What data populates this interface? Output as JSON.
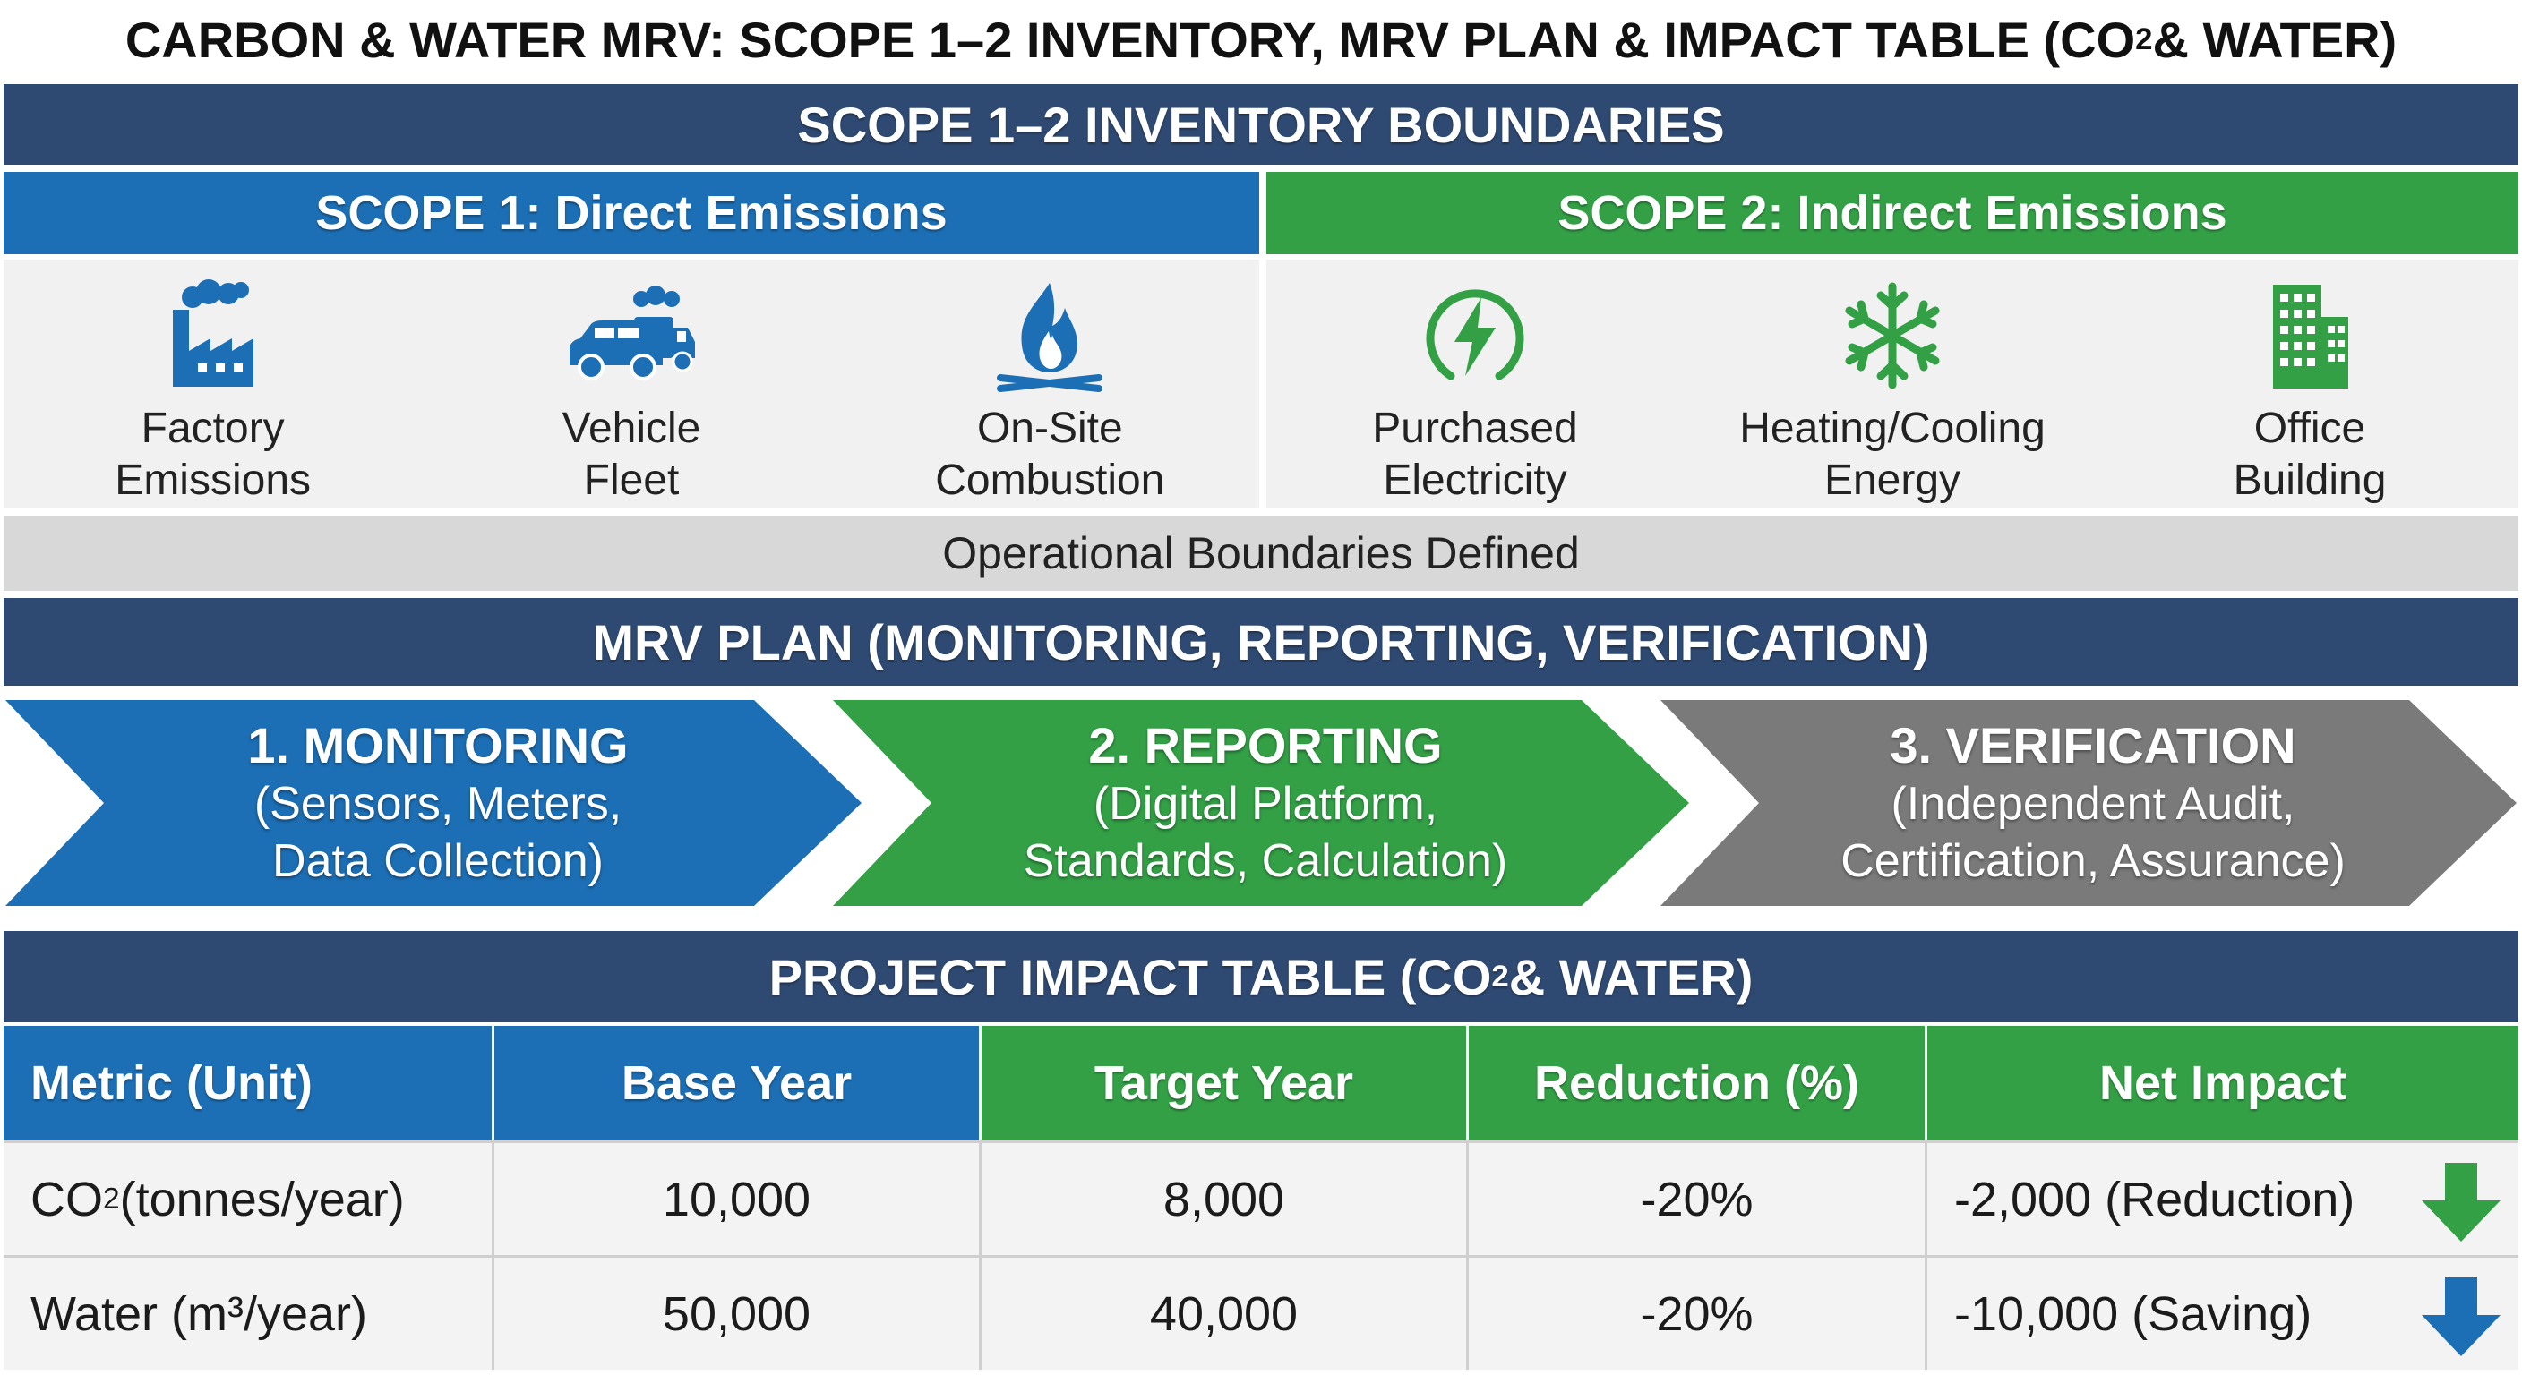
{
  "title": {
    "before": "CARBON & WATER MRV: SCOPE 1–2 INVENTORY, MRV PLAN & IMPACT TABLE (CO",
    "sub": "2",
    "after": " & WATER)"
  },
  "inventory": {
    "heading": "SCOPE 1–2 INVENTORY BOUNDARIES",
    "scope1": {
      "heading": "SCOPE 1: Direct Emissions",
      "items": [
        {
          "label": "Factory\nEmissions",
          "icon": "factory-icon"
        },
        {
          "label": "Vehicle\nFleet",
          "icon": "vehicle-fleet-icon"
        },
        {
          "label": "On-Site\nCombustion",
          "icon": "flame-icon"
        }
      ]
    },
    "scope2": {
      "heading": "SCOPE 2: Indirect Emissions",
      "items": [
        {
          "label": "Purchased\nElectricity",
          "icon": "lightning-icon"
        },
        {
          "label": "Heating/Cooling\nEnergy",
          "icon": "snowflake-icon"
        },
        {
          "label": "Office\nBuilding",
          "icon": "office-building-icon"
        }
      ]
    },
    "operational_note": "Operational Boundaries Defined"
  },
  "mrv_plan": {
    "heading": "MRV PLAN (MONITORING, REPORTING, VERIFICATION)",
    "steps": [
      {
        "title": "1. MONITORING",
        "desc": "(Sensors, Meters,\nData Collection)",
        "color": "#1c6fb5"
      },
      {
        "title": "2. REPORTING",
        "desc": "(Digital Platform,\nStandards, Calculation)",
        "color": "#33a046"
      },
      {
        "title": "3. VERIFICATION",
        "desc": "(Independent Audit,\nCertification, Assurance)",
        "color": "#7a7a7a"
      }
    ]
  },
  "impact_table": {
    "heading_before": "PROJECT IMPACT TABLE (CO",
    "heading_sub": "2",
    "heading_after": " & WATER)",
    "columns": [
      "Metric (Unit)",
      "Base Year",
      "Target Year",
      "Reduction (%)",
      "Net Impact"
    ],
    "rows": [
      {
        "metric_before": "CO",
        "metric_sub": "2",
        "metric_after": " (tonnes/year)",
        "base": "10,000",
        "target": "8,000",
        "reduction": "-20%",
        "net": "-2,000 (Reduction)",
        "arrow_color": "#33a046",
        "arrow_icon": "down-arrow-green-icon"
      },
      {
        "metric_before": "Water (m³/year)",
        "metric_sub": "",
        "metric_after": "",
        "base": "50,000",
        "target": "40,000",
        "reduction": "-20%",
        "net": "-10,000 (Saving)",
        "arrow_color": "#1c6fb5",
        "arrow_icon": "down-arrow-blue-icon"
      }
    ]
  },
  "colors": {
    "navy": "#2f4a72",
    "blue": "#1c6fb5",
    "green": "#33a046",
    "gray": "#7a7a7a"
  }
}
